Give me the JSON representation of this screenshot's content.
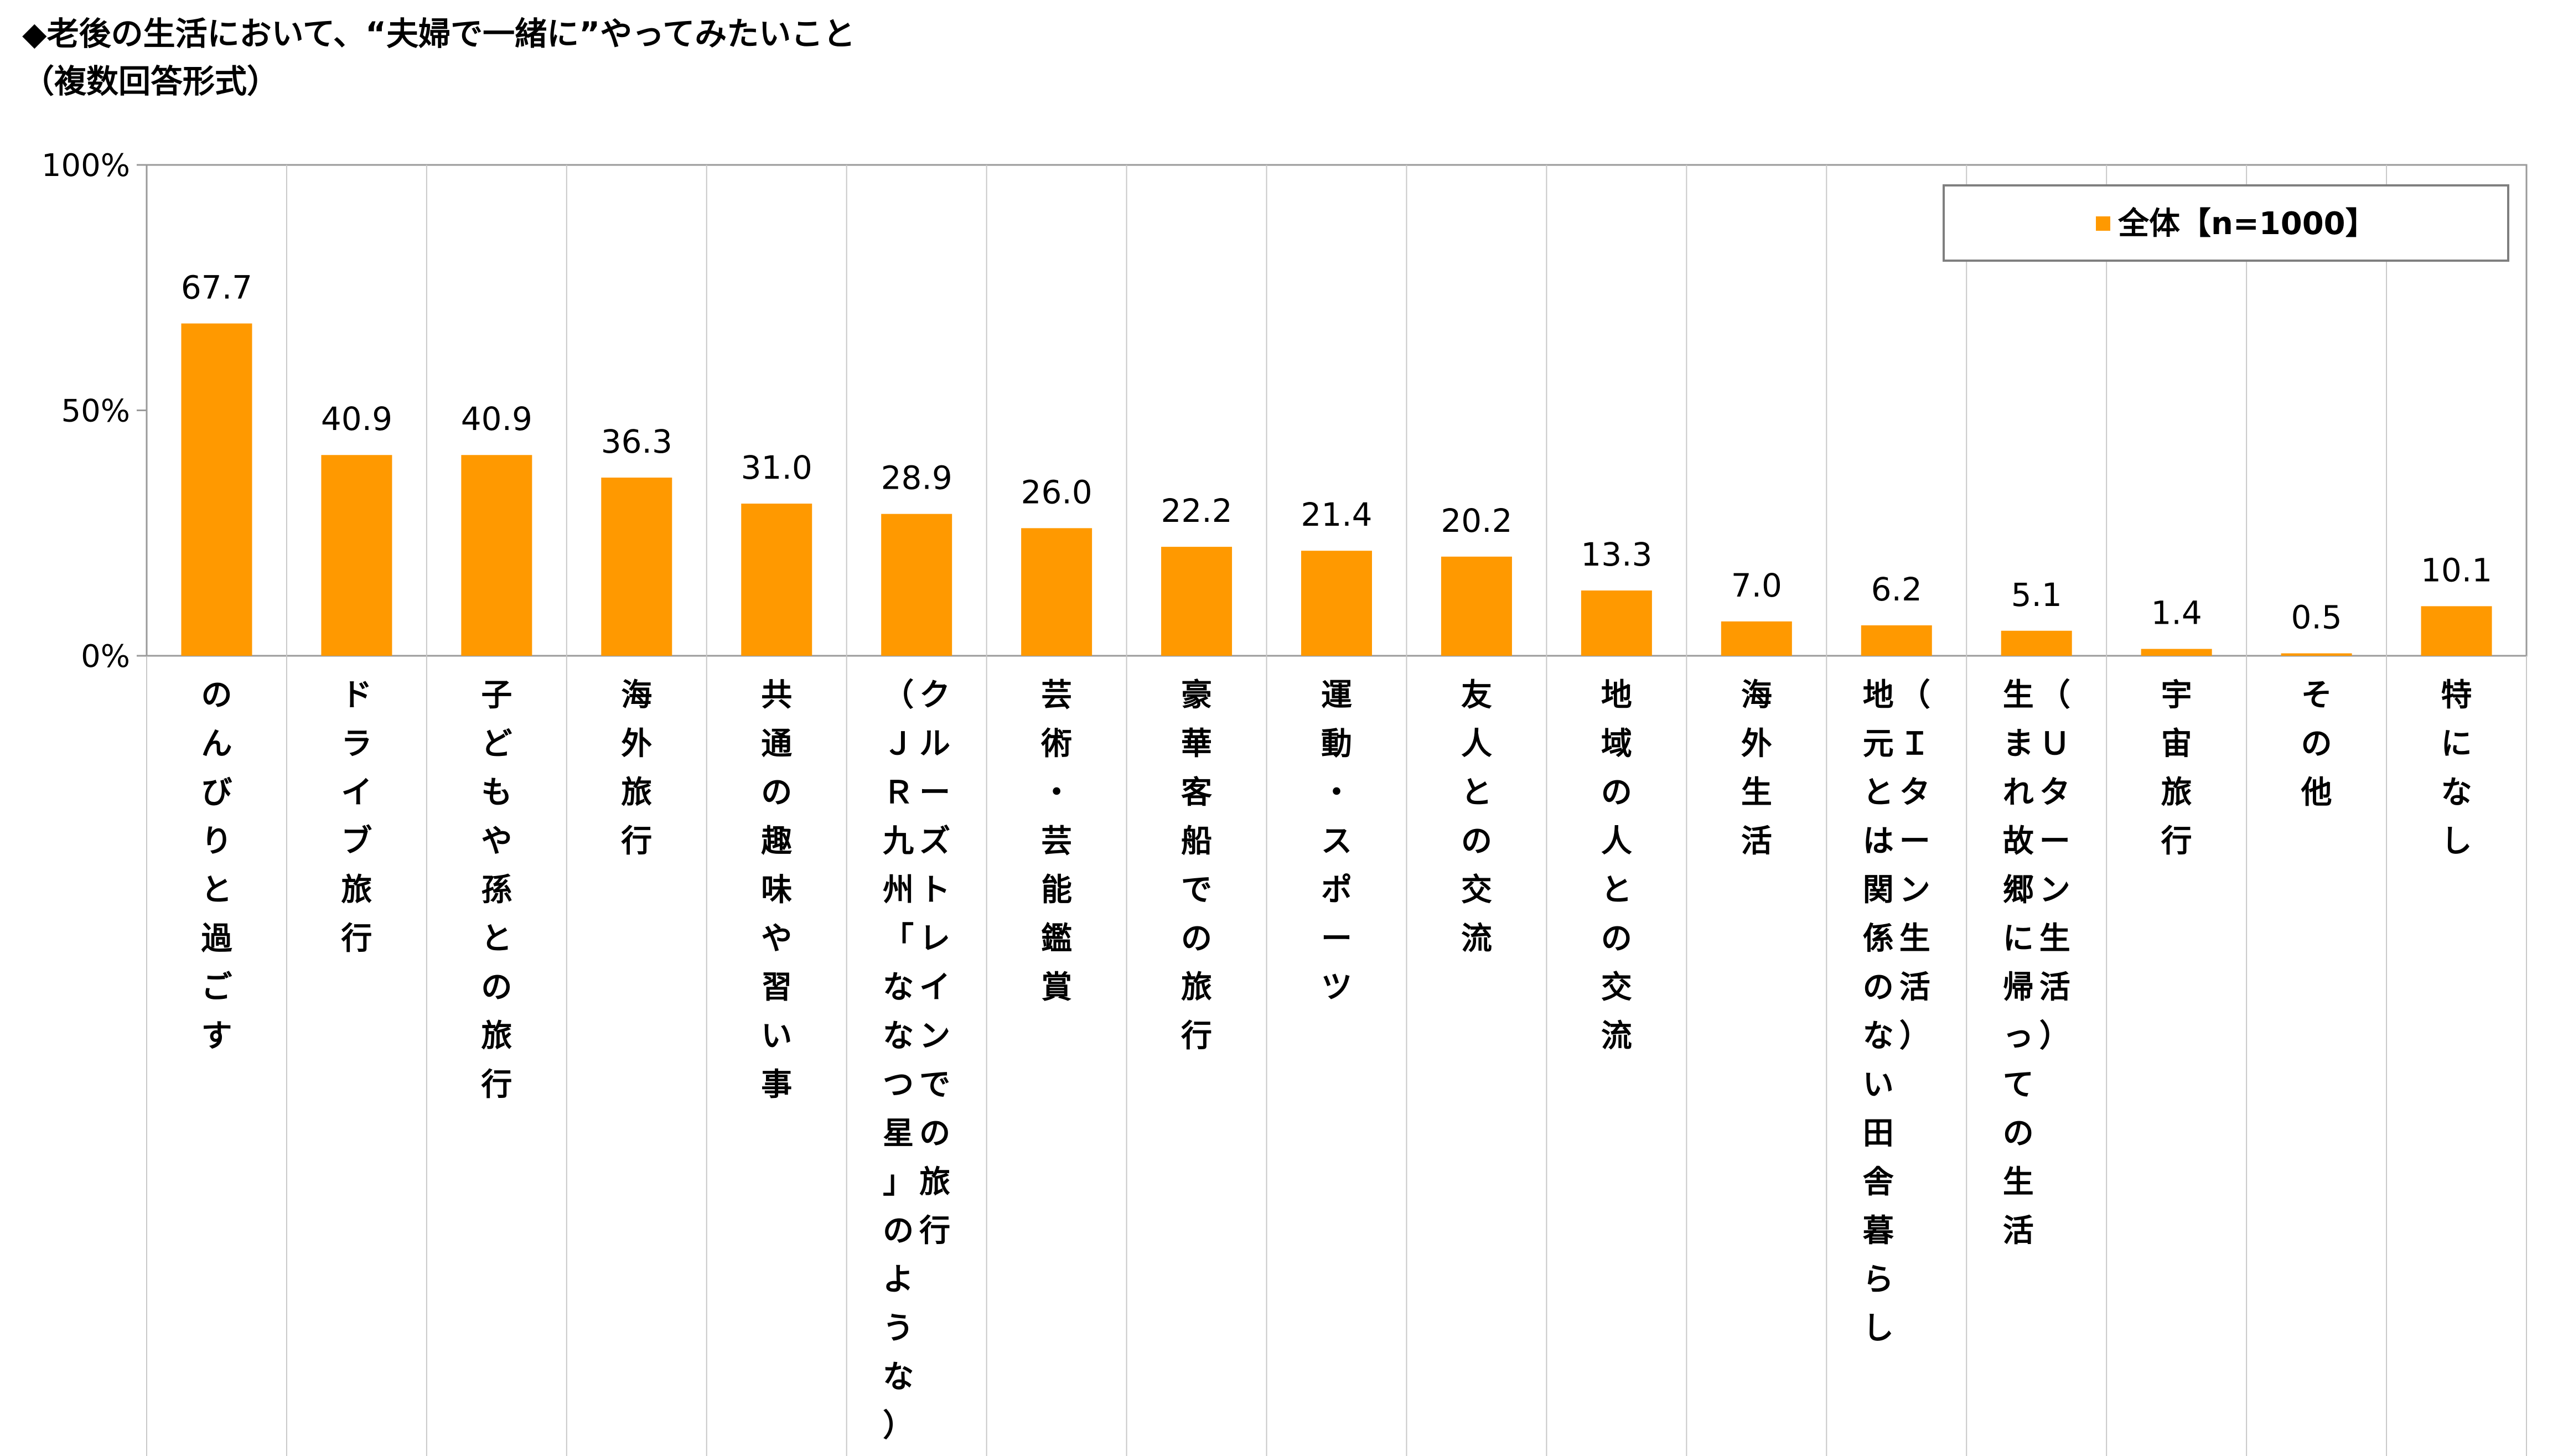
{
  "title": "◆老後の生活において、“夫婦で一緒に”やってみたいこと",
  "subtitle": "（複数回答形式）",
  "legend": {
    "label": "全体【n=1000】",
    "position": "top-right",
    "color": "#FF9900"
  },
  "chart_data": {
    "type": "bar",
    "title": "◆老後の生活において、“夫婦で一緒に”やってみたいこと",
    "subtitle": "（複数回答形式）",
    "ylim": [
      0,
      100
    ],
    "yticks": [
      "0%",
      "50%",
      "100%"
    ],
    "ytick_values": [
      0,
      50,
      100
    ],
    "grid": "vertical category separators",
    "legend_position": "top-right",
    "categories": [
      "のんびりと過ごす",
      "ドライブ旅行",
      "子どもや孫との旅行",
      "海外旅行",
      "共通の趣味や習い事",
      "（ＪＲ九州「ななつ星」のような）クルーズトレインでの旅行",
      "芸術・芸能鑑賞",
      "豪華客船での旅行",
      "運動・スポーツ",
      "友人との交流",
      "地域の人との交流",
      "海外生活",
      "地元とは関係のない田舎暮らし（Ｉターン生活）",
      "生まれ故郷に帰っての生活（Ｕターン生活）",
      "宇宙旅行",
      "その他",
      "特になし"
    ],
    "label_lines": [
      [
        "のんびりと過ごす"
      ],
      [
        "ドライブ旅行"
      ],
      [
        "子どもや孫との旅行"
      ],
      [
        "海外旅行"
      ],
      [
        "共通の趣味や習い事"
      ],
      [
        "クルーズトレインでの旅行",
        "（ＪＲ九州「ななつ星」のような）"
      ],
      [
        "芸術・芸能鑑賞"
      ],
      [
        "豪華客船での旅行"
      ],
      [
        "運動・スポーツ"
      ],
      [
        "友人との交流"
      ],
      [
        "地域の人との交流"
      ],
      [
        "海外生活"
      ],
      [
        "（Ｉターン生活）",
        "地元とは関係のない田舎暮らし"
      ],
      [
        "（Ｕターン生活）",
        "生まれ故郷に帰っての生活"
      ],
      [
        "宇宙旅行"
      ],
      [
        "その他"
      ],
      [
        "特になし"
      ]
    ],
    "series": [
      {
        "name": "全体【n=1000】",
        "color": "#FF9900",
        "values": [
          67.7,
          40.9,
          40.9,
          36.3,
          31.0,
          28.9,
          26.0,
          22.2,
          21.4,
          20.2,
          13.3,
          7.0,
          6.2,
          5.1,
          1.4,
          0.5,
          10.1
        ],
        "value_labels": [
          "67.7",
          "40.9",
          "40.9",
          "36.3",
          "31.0",
          "28.9",
          "26.0",
          "22.2",
          "21.4",
          "20.2",
          "13.3",
          "7.0",
          "6.2",
          "5.1",
          "1.4",
          "0.5",
          "10.1"
        ]
      }
    ]
  }
}
